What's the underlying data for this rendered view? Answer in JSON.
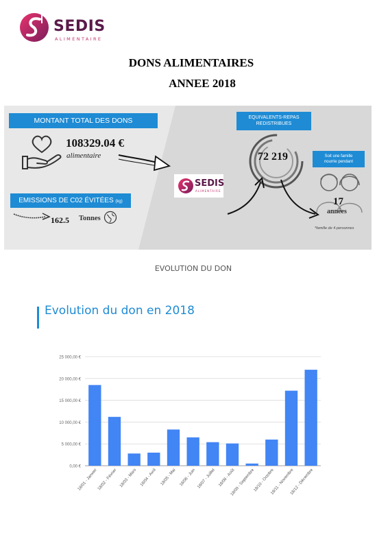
{
  "header": {
    "logo_word": "SEDIS",
    "logo_sub": "ALIMENTAIRE",
    "title_line1": "DONS ALIMENTAIRES",
    "title_line2": "ANNEE 2018"
  },
  "infographic": {
    "montant_label": "MONTANT TOTAL DES DONS",
    "montant_value": "108329.04 €",
    "montant_sub": "alimentaire",
    "emissions_label": "EMISSIONS DE C02 ÉVITÉES",
    "emissions_unit_small": "(kg)",
    "emissions_value": "162.5",
    "emissions_unit": "Tonnes",
    "equiv_label_line1": "EQUIVALENTS-REPAS",
    "equiv_label_line2": "REDISTRIBUES",
    "equiv_value": "72 219",
    "famille_label_line1": "Soit une famille",
    "famille_label_line2": "nourrie pendant",
    "annees_value": "17",
    "annees_unit": "années",
    "note": "*famille de 4 personnes",
    "mini_logo_word": "SEDIS",
    "mini_logo_sub": "ALIMENTAIRE",
    "colors": {
      "blue": "#1e8bd4",
      "plum": "#5a1b4a",
      "magenta": "#c0306a"
    }
  },
  "section_heading": "EVOLUTION DU DON",
  "chart_data": {
    "type": "bar",
    "title": "Evolution du don en 2018",
    "xlabel": "",
    "ylabel": "",
    "ylim": [
      0,
      25000
    ],
    "yticks": [
      0,
      5000,
      10000,
      15000,
      20000,
      25000
    ],
    "ytick_labels": [
      "0,00 €",
      "5 000,00 €",
      "10 000,00 €",
      "15 000,00 €",
      "20 000,00 €",
      "25 000,00 €"
    ],
    "grid": true,
    "legend": "none",
    "bar_color": "#4285f4",
    "categories": [
      "18/01 - Janvier",
      "18/02 - Février",
      "18/03 - Mars",
      "18/04 - Avril",
      "18/05 - Mai",
      "18/06 - Juin",
      "18/07 - Juillet",
      "18/08 - Août",
      "18/09 - Septembre",
      "18/10 - Octobre",
      "18/11 - Novembre",
      "18/12 - Décembre"
    ],
    "values": [
      18500,
      11200,
      2800,
      3000,
      8300,
      6500,
      5400,
      5100,
      500,
      6000,
      17200,
      22000
    ]
  }
}
